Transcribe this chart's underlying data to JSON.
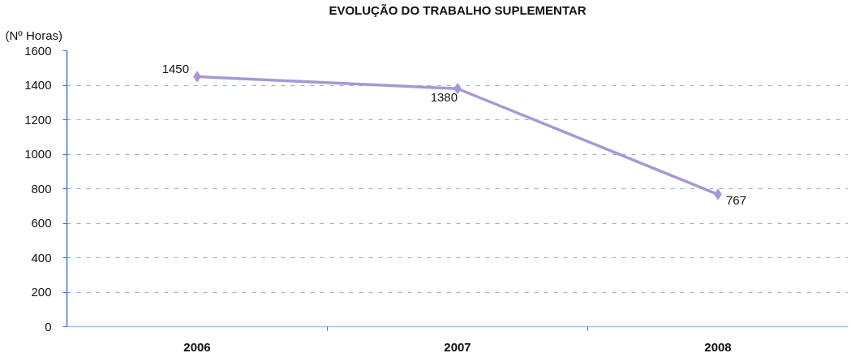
{
  "chart_data": {
    "type": "line",
    "title": "EVOLUÇÃO DO TRABALHO SUPLEMENTAR",
    "ylabel": "(Nº Horas)",
    "categories": [
      "2006",
      "2007",
      "2008"
    ],
    "series": [
      {
        "color": "#a996d6",
        "values": [
          1450,
          1380,
          767
        ]
      }
    ],
    "ylim": [
      0,
      1600
    ],
    "yticks": [
      0,
      200,
      400,
      600,
      800,
      1000,
      1200,
      1400,
      1600
    ],
    "grid": "y",
    "marker": "diamond",
    "line_style": "solid",
    "data_labels": true
  }
}
